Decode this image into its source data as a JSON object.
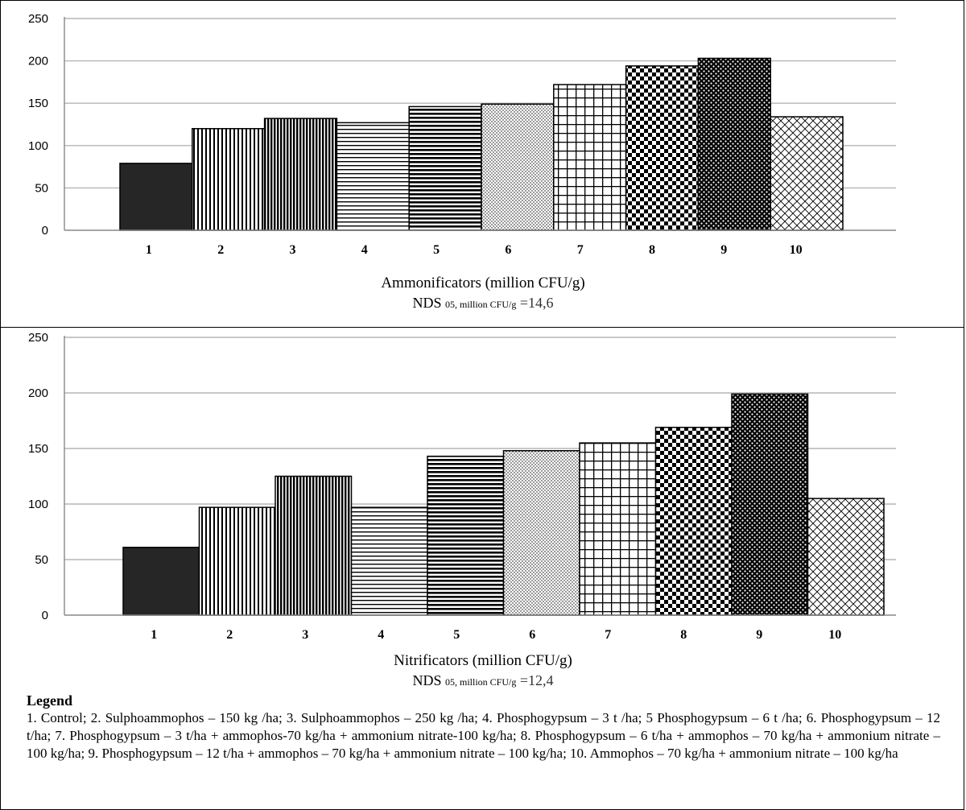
{
  "chart_data": [
    {
      "type": "bar",
      "categories": [
        "1",
        "2",
        "3",
        "4",
        "5",
        "6",
        "7",
        "8",
        "9",
        "10"
      ],
      "values": [
        79,
        120,
        132,
        127,
        146,
        149,
        172,
        194,
        203,
        134
      ],
      "yticks": [
        "0",
        "50",
        "100",
        "150",
        "200",
        "250"
      ],
      "ylim": [
        0,
        250
      ],
      "grid": true,
      "xlabel": "Ammonificators (million CFU/g)",
      "nds_prefix": "NDS",
      "nds_sub": "05, million CFU/g",
      "nds_value": "=14,6"
    },
    {
      "type": "bar",
      "categories": [
        "1",
        "2",
        "3",
        "4",
        "5",
        "6",
        "7",
        "8",
        "9",
        "10"
      ],
      "values": [
        61,
        97,
        125,
        97,
        143,
        148,
        155,
        169,
        199,
        105
      ],
      "yticks": [
        "0",
        "50",
        "100",
        "150",
        "200",
        "250"
      ],
      "ylim": [
        0,
        250
      ],
      "grid": true,
      "xlabel": "Nitrificators (million CFU/g)",
      "nds_prefix": "NDS",
      "nds_sub": "05, million CFU/g",
      "nds_value": "=12,4"
    }
  ],
  "legend": {
    "title": "Legend",
    "text": "1. Control; 2. Sulphoammophos – 150 kg /ha; 3. Sulphoammophos – 250 kg /ha; 4. Phosphogypsum – 3 t /ha; 5 Phosphogypsum – 6 t /ha; 6. Phosphogypsum – 12 t/ha; 7. Phosphogypsum – 3 t/ha + ammophos-70 kg/ha + ammonium nitrate-100 kg/ha; 8. Phosphogypsum – 6 t/ha + ammophos – 70 kg/ha + ammonium nitrate – 100 kg/ha; 9. Phosphogypsum – 12 t/ha + ammophos – 70 kg/ha + ammonium nitrate – 100 kg/ha; 10. Ammophos – 70 kg/ha + ammonium nitrate – 100 kg/ha"
  }
}
